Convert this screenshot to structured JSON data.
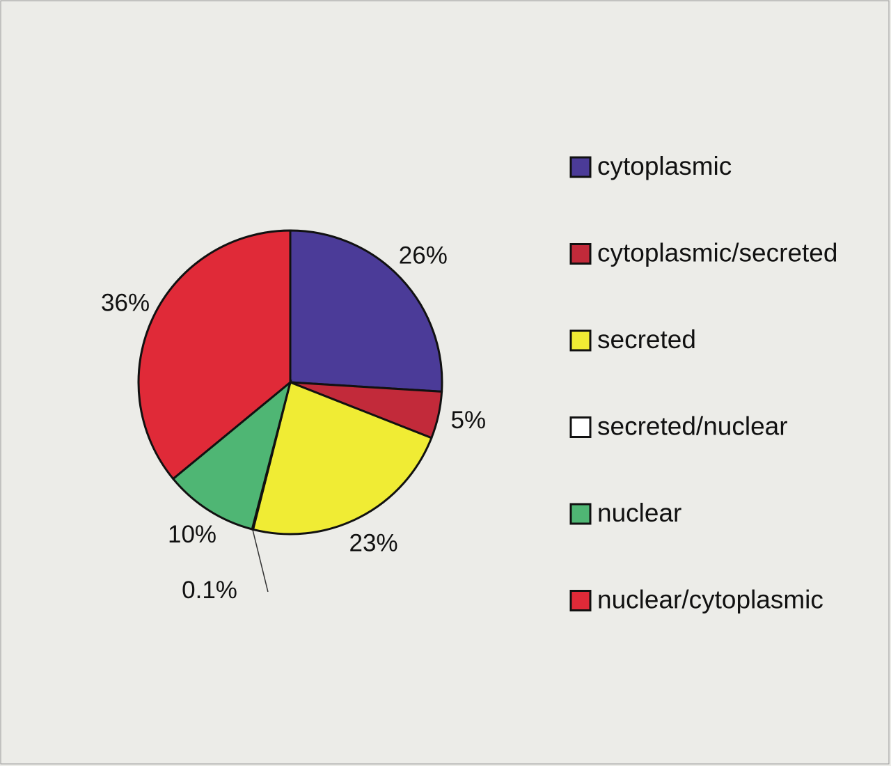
{
  "chart_data": {
    "type": "pie",
    "categories": [
      "cytoplasmic",
      "cytoplasmic/secreted",
      "secreted",
      "secreted/nuclear",
      "nuclear",
      "nuclear/cytoplasmic"
    ],
    "values": [
      26,
      5,
      23,
      0.1,
      10,
      36
    ],
    "value_labels": [
      "26%",
      "5%",
      "23%",
      "0.1%",
      "10%",
      "36%"
    ],
    "colors": [
      "#4b3b98",
      "#c22a3a",
      "#f0ec34",
      "#ffffff",
      "#4fb674",
      "#e02a38"
    ]
  }
}
